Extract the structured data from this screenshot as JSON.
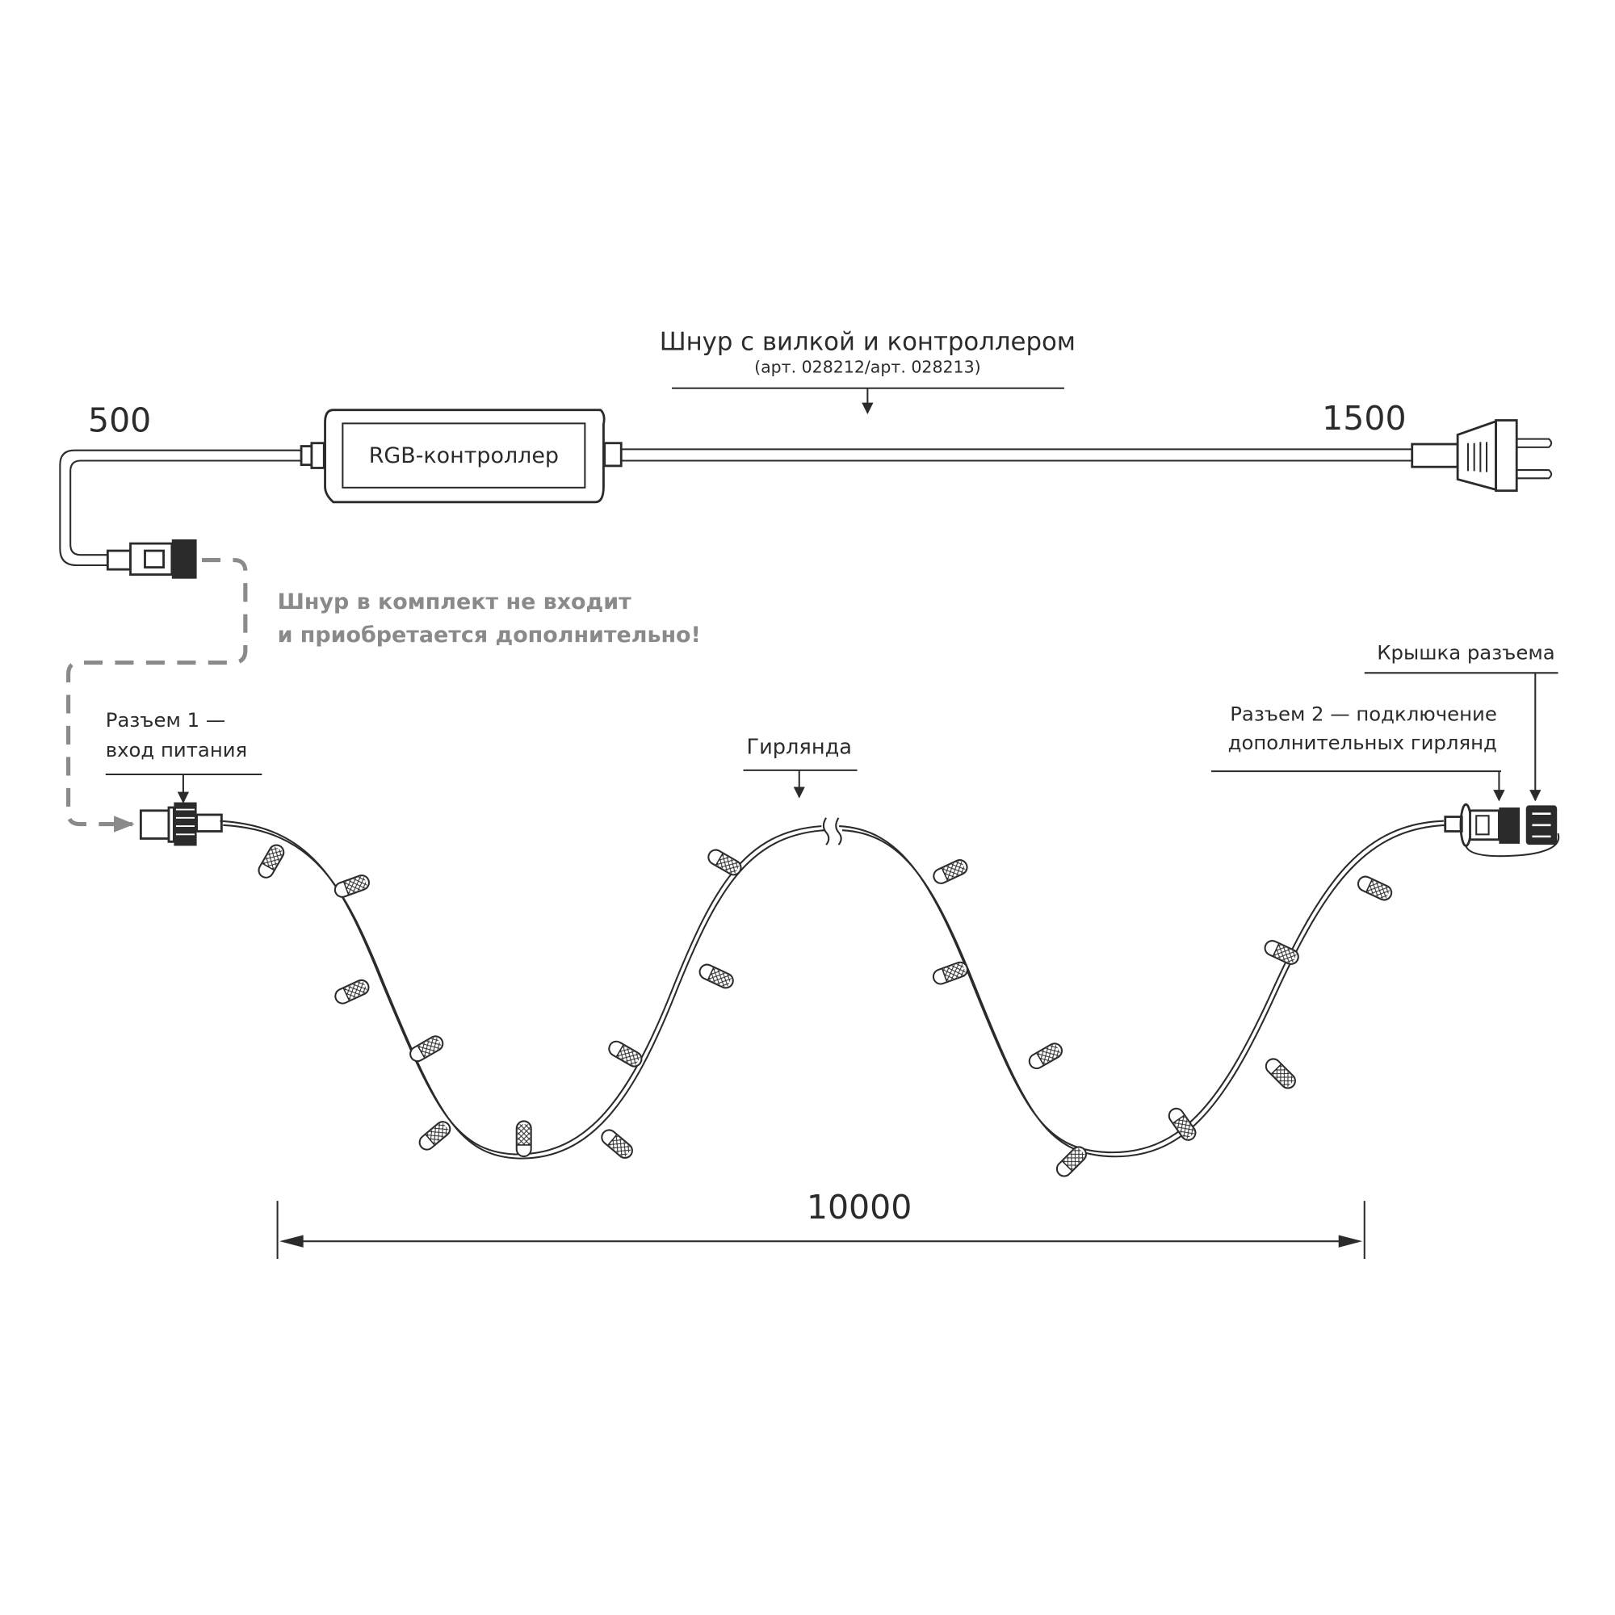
{
  "cord": {
    "title": "Шнур с вилкой и контроллером",
    "article": "(арт. 028212/арт. 028213)",
    "left_length": "500",
    "right_length": "1500",
    "controller_label": "RGB-контроллер"
  },
  "note": {
    "line1": "Шнур в комплект не входит",
    "line2": "и приобретается дополнительно!",
    "color": "#8a8a8a"
  },
  "connector1": {
    "line1": "Разъем 1 —",
    "line2": "вход питания"
  },
  "garland": {
    "label": "Гирлянда",
    "length": "10000"
  },
  "connector2": {
    "line1": "Разъем 2 — подключение",
    "line2": "дополнительных гирлянд"
  },
  "cap": {
    "label": "Крышка разъема"
  }
}
